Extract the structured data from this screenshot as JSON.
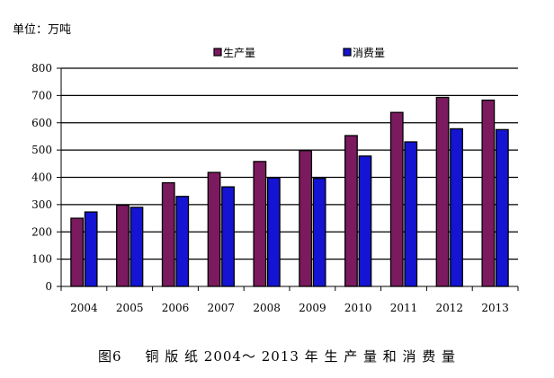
{
  "unit_label": "单位：万吨",
  "caption": {
    "figure_no": "图6",
    "text": "铜 版 纸 2004～ 2013 年 生 产 量 和 消 费 量"
  },
  "chart_data": {
    "type": "bar",
    "categories": [
      "2004",
      "2005",
      "2006",
      "2007",
      "2008",
      "2009",
      "2010",
      "2011",
      "2012",
      "2013"
    ],
    "series": [
      {
        "name": "生产量",
        "color": "#7b1a5e",
        "values": [
          250,
          298,
          380,
          418,
          458,
          498,
          553,
          638,
          693,
          683
        ]
      },
      {
        "name": "消费量",
        "color": "#1414d2",
        "values": [
          273,
          290,
          330,
          365,
          398,
          396,
          478,
          530,
          578,
          575
        ]
      }
    ],
    "ylim": [
      0,
      800
    ],
    "yticks": [
      0,
      100,
      200,
      300,
      400,
      500,
      600,
      700,
      800
    ],
    "grid": true,
    "legend_position": "top-center"
  }
}
